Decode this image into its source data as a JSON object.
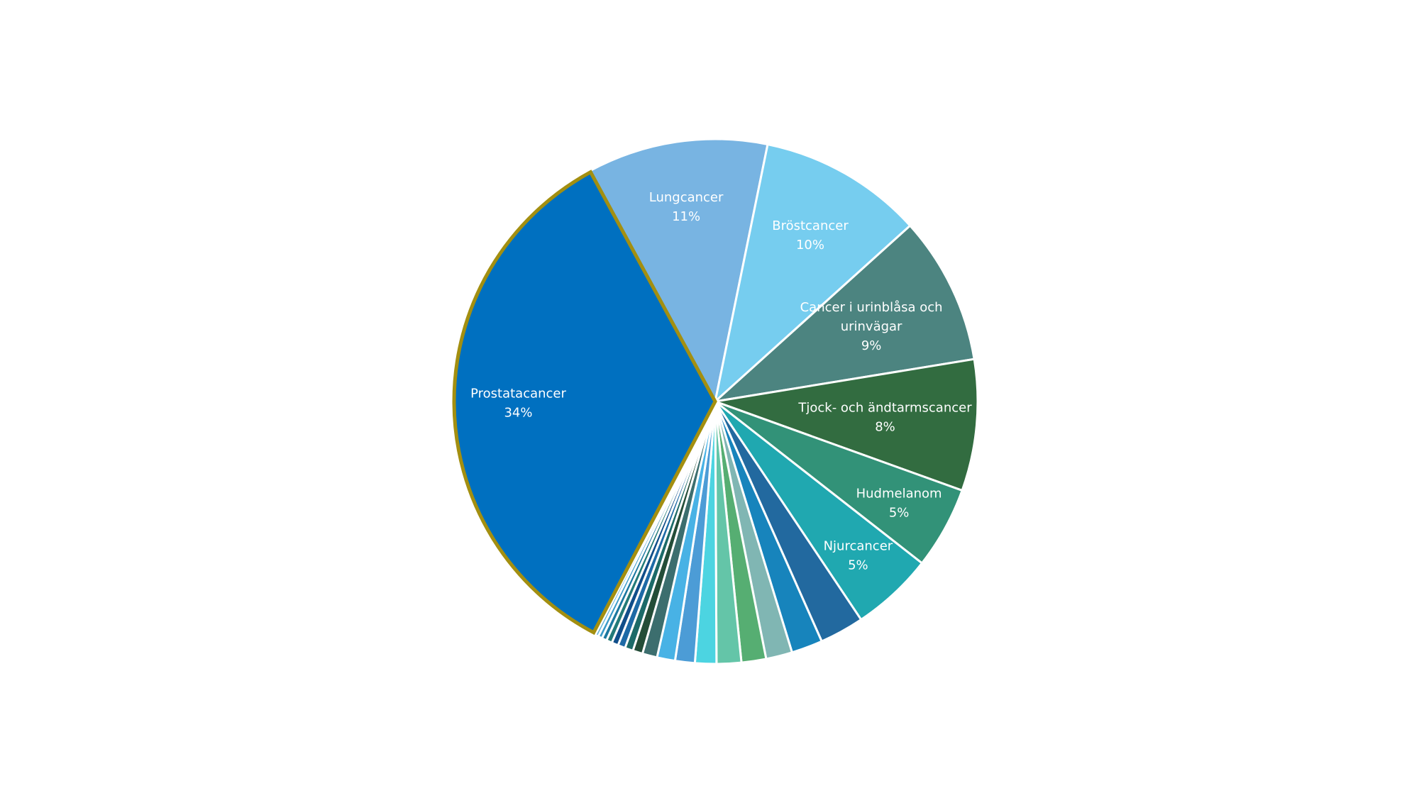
{
  "chart_data": {
    "type": "pie",
    "slices": [
      {
        "name": "Prostatacancer",
        "value": 34,
        "label": "34%",
        "color": "#0070C0",
        "highlight": "#A38F10",
        "show_label": true
      },
      {
        "name": "Lungcancer",
        "value": 11,
        "label": "11%",
        "color": "#78B4E2",
        "show_label": true
      },
      {
        "name": "Bröstcancer",
        "value": 10,
        "label": "10%",
        "color": "#76CDEF",
        "show_label": true
      },
      {
        "name": "Cancer i urinblåsa och urinvägar",
        "label_lines": [
          "Cancer i urinblåsa och",
          "urinvägar"
        ],
        "value": 9,
        "label": "9%",
        "color": "#4C8480",
        "show_label": true
      },
      {
        "name": "Tjock- och ändtarmscancer",
        "value": 8,
        "label": "8%",
        "color": "#326C40",
        "show_label": true
      },
      {
        "name": "Hudmelanom",
        "value": 5,
        "label": "5%",
        "color": "#329278",
        "show_label": true
      },
      {
        "name": "Njurcancer",
        "value": 5,
        "label": "5%",
        "color": "#20A8B0",
        "show_label": true
      },
      {
        "value": 2.7,
        "color": "#22699F",
        "show_label": false
      },
      {
        "value": 1.9,
        "color": "#1784BC",
        "show_label": false
      },
      {
        "value": 1.6,
        "color": "#80B6B3",
        "show_label": false
      },
      {
        "value": 1.5,
        "color": "#56AE72",
        "show_label": false
      },
      {
        "value": 1.5,
        "color": "#64C5A8",
        "show_label": false
      },
      {
        "value": 1.3,
        "color": "#4CD4E1",
        "show_label": false
      },
      {
        "value": 1.2,
        "color": "#4C9CD6",
        "show_label": false
      },
      {
        "value": 1.1,
        "color": "#48B2E5",
        "show_label": false
      },
      {
        "value": 0.9,
        "color": "#3C6E6E",
        "show_label": false
      },
      {
        "value": 0.6,
        "color": "#244D38",
        "show_label": false
      },
      {
        "value": 0.5,
        "color": "#1C6A68",
        "show_label": false
      },
      {
        "value": 0.45,
        "color": "#1E6AA6",
        "show_label": false
      },
      {
        "value": 0.4,
        "color": "#104E8A",
        "show_label": false
      },
      {
        "value": 0.35,
        "color": "#227A78",
        "show_label": false
      },
      {
        "value": 0.3,
        "color": "#1B78A0",
        "show_label": false
      },
      {
        "value": 0.25,
        "color": "#3A9AC8",
        "show_label": false
      },
      {
        "value": 0.2,
        "color": "#62B3D9",
        "show_label": false
      },
      {
        "value": 0.15,
        "color": "#8FCFE8",
        "show_label": false
      }
    ],
    "legend": "none"
  }
}
